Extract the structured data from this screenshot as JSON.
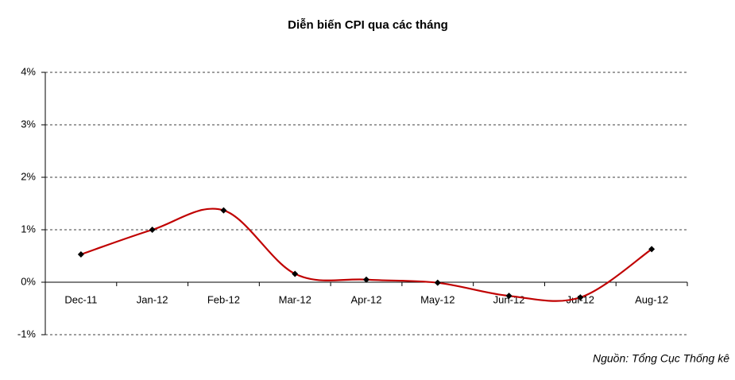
{
  "chart_data": {
    "type": "line",
    "title": "Diễn biến CPI qua các tháng",
    "categories": [
      "Dec-11",
      "Jan-12",
      "Feb-12",
      "Mar-12",
      "Apr-12",
      "May-12",
      "Jun-12",
      "Jul-12",
      "Aug-12"
    ],
    "series": [
      {
        "name": "CPI",
        "color": "#c00000",
        "marker_color": "#000000",
        "values": [
          0.53,
          1.0,
          1.37,
          0.16,
          0.05,
          -0.01,
          -0.26,
          -0.29,
          0.63
        ]
      }
    ],
    "ylim": [
      -1,
      4
    ],
    "yticks": [
      {
        "value": -1,
        "label": "-1%"
      },
      {
        "value": 0,
        "label": "0%"
      },
      {
        "value": 1,
        "label": "1%"
      },
      {
        "value": 2,
        "label": "2%"
      },
      {
        "value": 3,
        "label": "3%"
      },
      {
        "value": 4,
        "label": "4%"
      }
    ],
    "grid": true,
    "smooth": true,
    "source": "Nguồn: Tổng Cục Thống kê"
  }
}
